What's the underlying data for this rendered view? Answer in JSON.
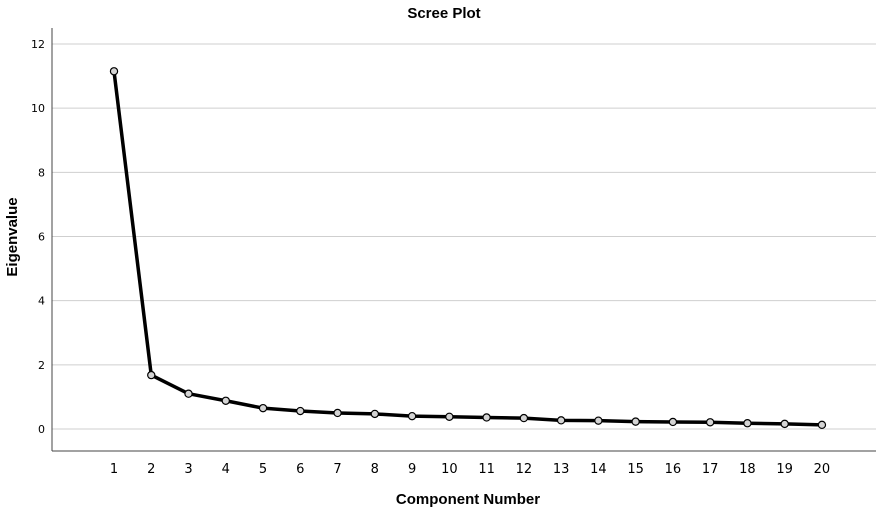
{
  "chart_data": {
    "type": "line",
    "title": "Scree Plot",
    "xlabel": "Component Number",
    "ylabel": "Eigenvalue",
    "ylim": [
      0,
      12
    ],
    "yticks": [
      "0",
      "2",
      "4",
      "6",
      "8",
      "10",
      "12"
    ],
    "categories": [
      "1",
      "2",
      "3",
      "4",
      "5",
      "6",
      "7",
      "8",
      "9",
      "10",
      "11",
      "12",
      "13",
      "14",
      "15",
      "16",
      "17",
      "18",
      "19",
      "20"
    ],
    "grid": "horizontal",
    "series": [
      {
        "values": [
          11.15,
          1.68,
          1.1,
          0.88,
          0.65,
          0.56,
          0.5,
          0.47,
          0.4,
          0.38,
          0.36,
          0.34,
          0.27,
          0.26,
          0.23,
          0.22,
          0.21,
          0.18,
          0.16,
          0.13
        ]
      }
    ]
  }
}
